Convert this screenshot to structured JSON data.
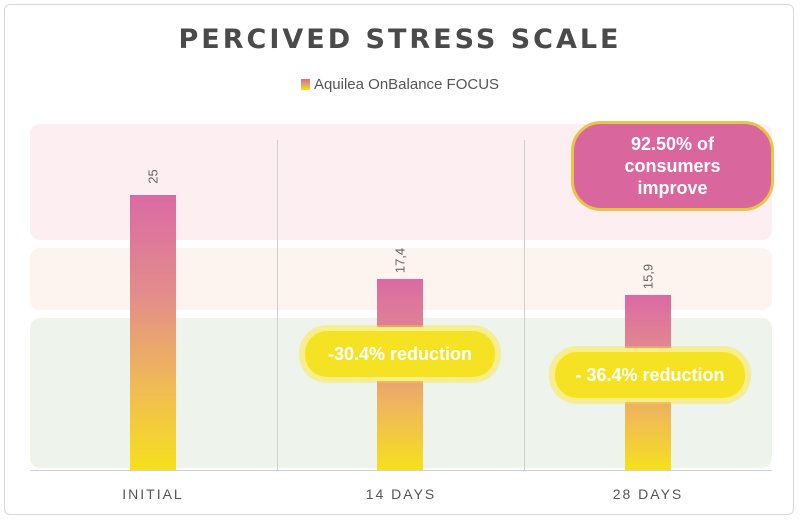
{
  "chart_data": {
    "type": "bar",
    "title": "PERCIVED STRESS SCALE",
    "legend": [
      "Aquilea OnBalance FOCUS"
    ],
    "categories": [
      "INITIAL",
      "14 DAYS",
      "28 DAYS"
    ],
    "values": [
      25,
      17.4,
      15.9
    ],
    "value_labels": [
      "25",
      "17,4",
      "15,9"
    ],
    "ylim": [
      0,
      30
    ],
    "grid": false,
    "annotations": [
      {
        "text": "-30.4% reduction",
        "category": "14 DAYS"
      },
      {
        "text": "- 36.4% reduction",
        "category": "28 DAYS"
      },
      {
        "text": "92.50% of consumers improve",
        "category": "28 DAYS"
      }
    ]
  },
  "colors": {
    "bar_top": "#da6aa4",
    "bar_bottom": "#f6e01c",
    "pill_yellow": "#f5e323",
    "pill_pink": "#d9669d"
  }
}
